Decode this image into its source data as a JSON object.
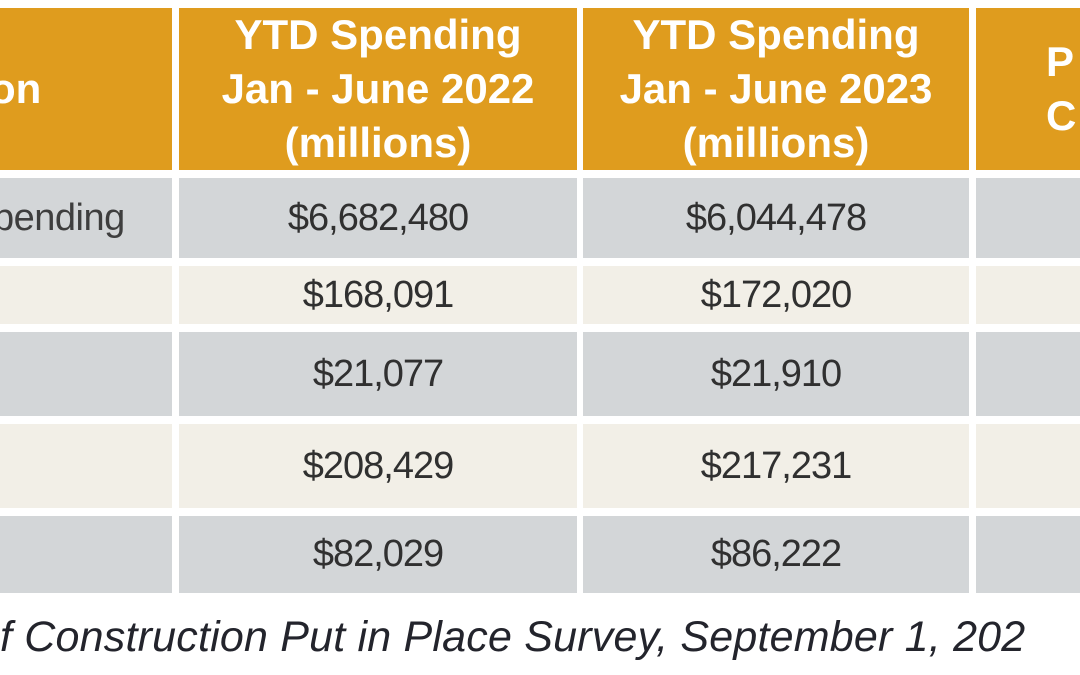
{
  "colors": {
    "header_bg": "#DF9C1E",
    "row_gray": "#D3D6D8",
    "row_cream": "#F2EFE7",
    "header_text": "#FFFFFF",
    "cell_text": "#303030",
    "footer_text": "#23242C"
  },
  "table": {
    "header": {
      "col_label_partial": "on",
      "col_2022": {
        "line1": "YTD Spending",
        "line2": "Jan - June 2022",
        "line3": "(millions)"
      },
      "col_2023": {
        "line1": "YTD Spending",
        "line2": "Jan - June 2023",
        "line3": "(millions)"
      },
      "col_change_partial": {
        "line1": "P",
        "line2": "C"
      }
    },
    "rows": [
      {
        "label_partial": "pending",
        "ytd_2022": "$6,682,480",
        "ytd_2023": "$6,044,478"
      },
      {
        "label_partial": "",
        "ytd_2022": "$168,091",
        "ytd_2023": "$172,020"
      },
      {
        "label_partial": "",
        "ytd_2022": "$21,077",
        "ytd_2023": "$21,910"
      },
      {
        "label_partial": "",
        "ytd_2022": "$208,429",
        "ytd_2023": "$217,231"
      },
      {
        "label_partial": "",
        "ytd_2022": "$82,029",
        "ytd_2023": "$86,222"
      }
    ]
  },
  "footer": {
    "source_citation_partial": "f Construction Put in Place Survey, September 1, 202"
  },
  "chart_data": {
    "type": "table",
    "columns": [
      "on",
      "YTD Spending Jan - June 2022 (millions)",
      "YTD Spending Jan - June 2023 (millions)",
      "P C"
    ],
    "rows": [
      [
        "pending",
        "$6,682,480",
        "$6,044,478"
      ],
      [
        "",
        "$168,091",
        "$172,020"
      ],
      [
        "",
        "$21,077",
        "$21,910"
      ],
      [
        "",
        "$208,429",
        "$217,231"
      ],
      [
        "",
        "$82,029",
        "$86,222"
      ]
    ],
    "series": [
      {
        "name": "YTD Spending Jan - June 2022 (millions)",
        "values": [
          6682480,
          168091,
          21077,
          208429,
          82029
        ]
      },
      {
        "name": "YTD Spending Jan - June 2023 (millions)",
        "values": [
          6044478,
          172020,
          21910,
          217231,
          86222
        ]
      }
    ],
    "source_note": "f Construction Put in Place Survey, September 1, 202"
  }
}
